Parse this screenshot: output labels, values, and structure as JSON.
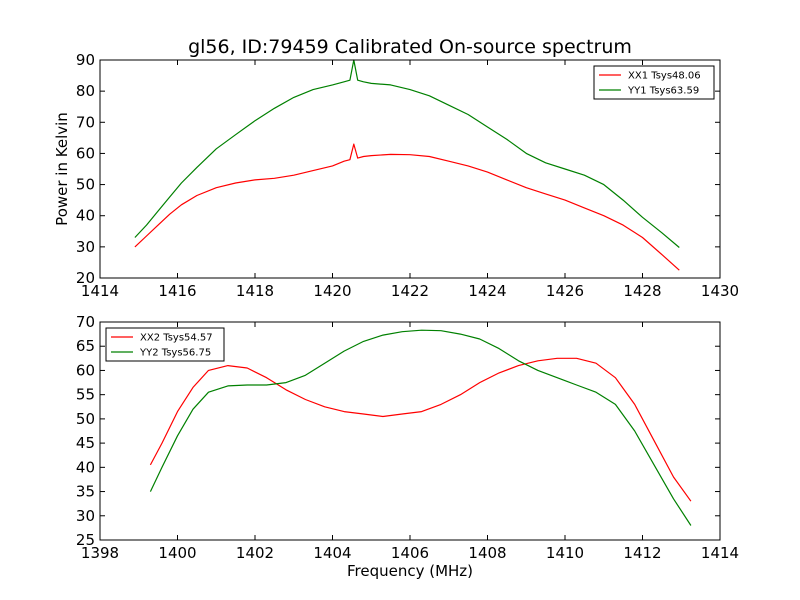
{
  "figure": {
    "title": "gl56, ID:79459 Calibrated On-source spectrum"
  },
  "chart_data": [
    {
      "type": "line",
      "title": "gl56, ID:79459 Calibrated On-source spectrum",
      "xlabel": "",
      "ylabel": "Power in Kelvin",
      "xlim": [
        1414,
        1430
      ],
      "ylim": [
        20,
        90
      ],
      "xticks": [
        "1414",
        "1416",
        "1418",
        "1420",
        "1422",
        "1424",
        "1426",
        "1428",
        "1430"
      ],
      "yticks": [
        "20",
        "30",
        "40",
        "50",
        "60",
        "70",
        "80",
        "90"
      ],
      "grid": false,
      "legend_position": "top-right",
      "series": [
        {
          "name": "XX1 Tsys48.06",
          "color": "#ff0000",
          "x": [
            1414.9,
            1415.2,
            1415.5,
            1415.8,
            1416.1,
            1416.5,
            1417.0,
            1417.5,
            1418.0,
            1418.5,
            1419.0,
            1419.5,
            1420.0,
            1420.3,
            1420.45,
            1420.55,
            1420.65,
            1420.8,
            1421.0,
            1421.5,
            1422.0,
            1422.5,
            1423.0,
            1423.5,
            1424.0,
            1424.5,
            1425.0,
            1425.5,
            1426.0,
            1426.5,
            1427.0,
            1427.5,
            1428.0,
            1428.5,
            1428.95
          ],
          "values": [
            30,
            33.5,
            37,
            40.5,
            43.5,
            46.5,
            49,
            50.5,
            51.5,
            52,
            53,
            54.5,
            56,
            57.5,
            58,
            63,
            58.5,
            59,
            59.3,
            59.7,
            59.6,
            59,
            57.5,
            56,
            54,
            51.5,
            49,
            47,
            45,
            42.5,
            40,
            37,
            33,
            27.5,
            22.5
          ]
        },
        {
          "name": "YY1 Tsys63.59",
          "color": "#008000",
          "x": [
            1414.9,
            1415.2,
            1415.5,
            1415.8,
            1416.1,
            1416.5,
            1417.0,
            1417.5,
            1418.0,
            1418.5,
            1419.0,
            1419.5,
            1420.0,
            1420.3,
            1420.45,
            1420.55,
            1420.65,
            1420.8,
            1421.0,
            1421.5,
            1422.0,
            1422.5,
            1423.0,
            1423.5,
            1424.0,
            1424.5,
            1425.0,
            1425.5,
            1426.0,
            1426.5,
            1427.0,
            1427.5,
            1428.0,
            1428.5,
            1428.95
          ],
          "values": [
            33,
            37,
            41.5,
            46,
            50.5,
            55.5,
            61.5,
            66,
            70.5,
            74.5,
            78,
            80.5,
            82,
            83,
            83.5,
            90,
            83.5,
            83,
            82.5,
            82,
            80.5,
            78.5,
            75.5,
            72.5,
            68.5,
            64.5,
            60,
            57,
            55,
            53,
            50,
            45,
            39.5,
            34.5,
            29.8
          ]
        }
      ]
    },
    {
      "type": "line",
      "title": "",
      "xlabel": "Frequency (MHz)",
      "ylabel": "",
      "xlim": [
        1398,
        1414
      ],
      "ylim": [
        25,
        70
      ],
      "xticks": [
        "1398",
        "1400",
        "1402",
        "1404",
        "1406",
        "1408",
        "1410",
        "1412",
        "1414"
      ],
      "yticks": [
        "25",
        "30",
        "35",
        "40",
        "45",
        "50",
        "55",
        "60",
        "65",
        "70"
      ],
      "grid": false,
      "legend_position": "top-left",
      "series": [
        {
          "name": "XX2 Tsys54.57",
          "color": "#ff0000",
          "x": [
            1399.3,
            1399.6,
            1400.0,
            1400.4,
            1400.8,
            1401.3,
            1401.8,
            1402.3,
            1402.8,
            1403.3,
            1403.8,
            1404.3,
            1404.8,
            1405.3,
            1405.8,
            1406.3,
            1406.8,
            1407.3,
            1407.8,
            1408.3,
            1408.8,
            1409.3,
            1409.8,
            1410.3,
            1410.8,
            1411.3,
            1411.8,
            1412.3,
            1412.8,
            1413.25
          ],
          "values": [
            40.5,
            45,
            51.5,
            56.5,
            60,
            61,
            60.5,
            58.5,
            56,
            54,
            52.5,
            51.5,
            51,
            50.5,
            51,
            51.5,
            53,
            55,
            57.5,
            59.5,
            61,
            62,
            62.5,
            62.5,
            61.5,
            58.5,
            53,
            45.5,
            38,
            33
          ]
        },
        {
          "name": "YY2 Tsys56.75",
          "color": "#008000",
          "x": [
            1399.3,
            1399.6,
            1400.0,
            1400.4,
            1400.8,
            1401.3,
            1401.8,
            1402.3,
            1402.8,
            1403.3,
            1403.8,
            1404.3,
            1404.8,
            1405.3,
            1405.8,
            1406.3,
            1406.8,
            1407.3,
            1407.8,
            1408.3,
            1408.8,
            1409.3,
            1409.8,
            1410.3,
            1410.8,
            1411.3,
            1411.8,
            1412.3,
            1412.8,
            1413.25
          ],
          "values": [
            35,
            40,
            46.5,
            52,
            55.5,
            56.8,
            57,
            57,
            57.5,
            59,
            61.5,
            64,
            66,
            67.3,
            68,
            68.3,
            68.2,
            67.5,
            66.5,
            64.5,
            62,
            60,
            58.5,
            57,
            55.5,
            53,
            47.5,
            40.5,
            33.5,
            28
          ]
        }
      ]
    }
  ]
}
